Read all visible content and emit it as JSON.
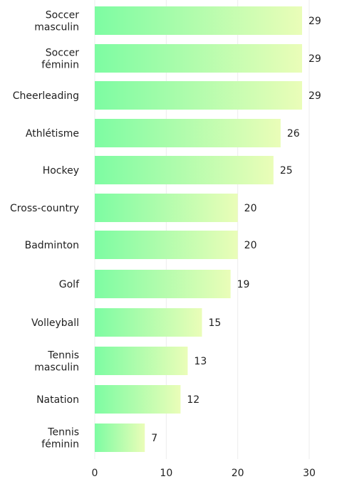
{
  "chart_data": {
    "type": "bar",
    "orientation": "horizontal",
    "categories": [
      [
        "Soccer",
        "masculin"
      ],
      [
        "Soccer",
        "féminin"
      ],
      [
        "Cheerleading"
      ],
      [
        "Athlétisme"
      ],
      [
        "Hockey"
      ],
      [
        "Cross-country"
      ],
      [
        "Badminton"
      ],
      [
        "Golf"
      ],
      [
        "Volleyball"
      ],
      [
        "Tennis",
        "masculin"
      ],
      [
        "Natation"
      ],
      [
        "Tennis",
        "féminin"
      ]
    ],
    "values": [
      29,
      29,
      29,
      26,
      25,
      20,
      20,
      19,
      15,
      13,
      12,
      7
    ],
    "xlim": [
      0,
      30
    ],
    "xticks": [
      0,
      10,
      20,
      30
    ],
    "grid": true,
    "legend": "none",
    "colors": {
      "bar_start": "#7dfca2",
      "bar_end": "#eafdb8",
      "text": "#1f1f1f",
      "grid": "#ececec"
    }
  }
}
